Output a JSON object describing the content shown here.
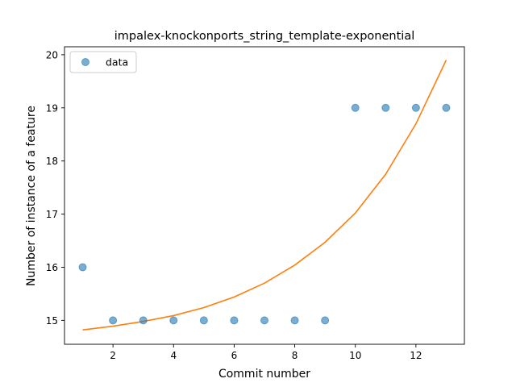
{
  "chart_data": {
    "type": "scatter",
    "title": "impalex-knockonports_string_template-exponential",
    "xlabel": "Commit number",
    "ylabel": "Number of instance of a feature",
    "xlim": [
      0.4,
      13.6
    ],
    "ylim": [
      14.55,
      20.15
    ],
    "xticks": [
      2,
      4,
      6,
      8,
      10,
      12
    ],
    "yticks": [
      15,
      16,
      17,
      18,
      19,
      20
    ],
    "grid": false,
    "legend": {
      "position": "top-left",
      "entries": [
        "data"
      ]
    },
    "series": [
      {
        "name": "data",
        "kind": "scatter",
        "color": "#1f77b4",
        "x": [
          1,
          2,
          3,
          4,
          5,
          6,
          7,
          8,
          9,
          10,
          11,
          12,
          13
        ],
        "y": [
          16,
          15,
          15,
          15,
          15,
          15,
          15,
          15,
          15,
          19,
          19,
          19,
          19
        ]
      },
      {
        "kind": "line",
        "color": "#ff7f0e",
        "x": [
          1,
          2,
          3,
          4,
          5,
          6,
          7,
          8,
          9,
          10,
          11,
          12,
          13
        ],
        "y": [
          14.82,
          14.89,
          14.98,
          15.09,
          15.24,
          15.44,
          15.7,
          16.04,
          16.47,
          17.02,
          17.75,
          18.7,
          19.9
        ]
      }
    ]
  }
}
